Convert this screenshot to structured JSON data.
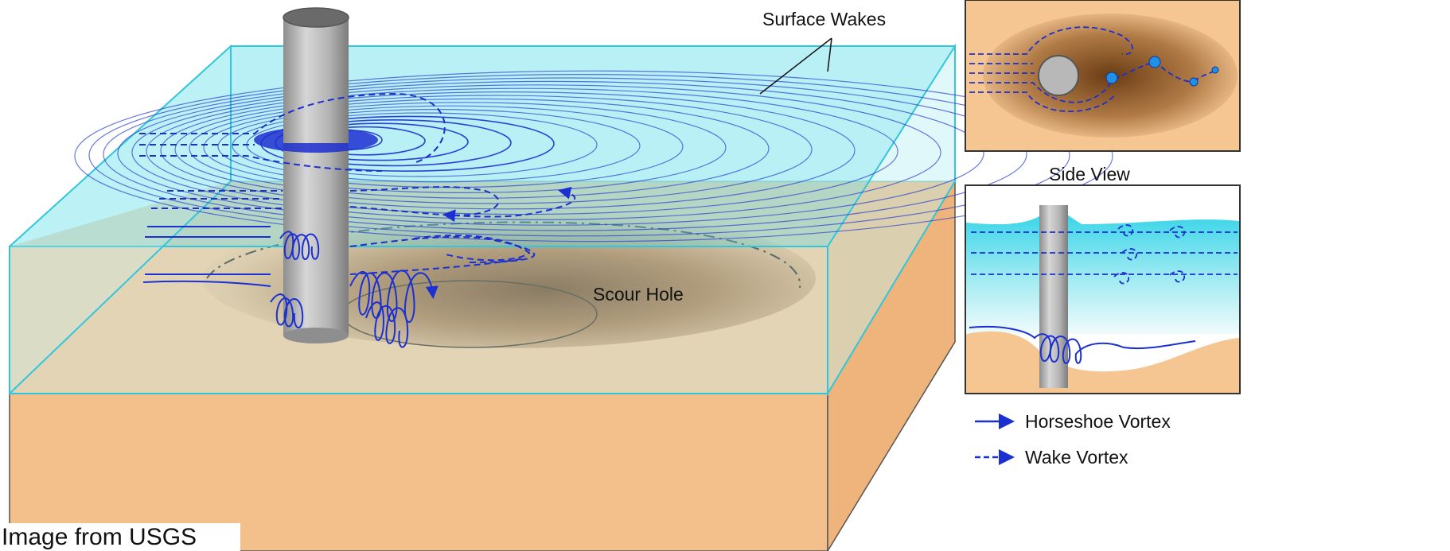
{
  "labels": {
    "surface_wakes": "Surface Wakes",
    "scour_hole": "Scour Hole",
    "side_view": "Side View"
  },
  "legend": {
    "horseshoe": "Horseshoe Vortex",
    "wake": "Wake Vortex"
  },
  "credit": "Image from USGS",
  "colors": {
    "water": "#8fe6f0",
    "sand": "#f5c592",
    "hole": "#7a4a22",
    "vortex": "#1c2fd0",
    "pier": "#a9a9a9"
  }
}
